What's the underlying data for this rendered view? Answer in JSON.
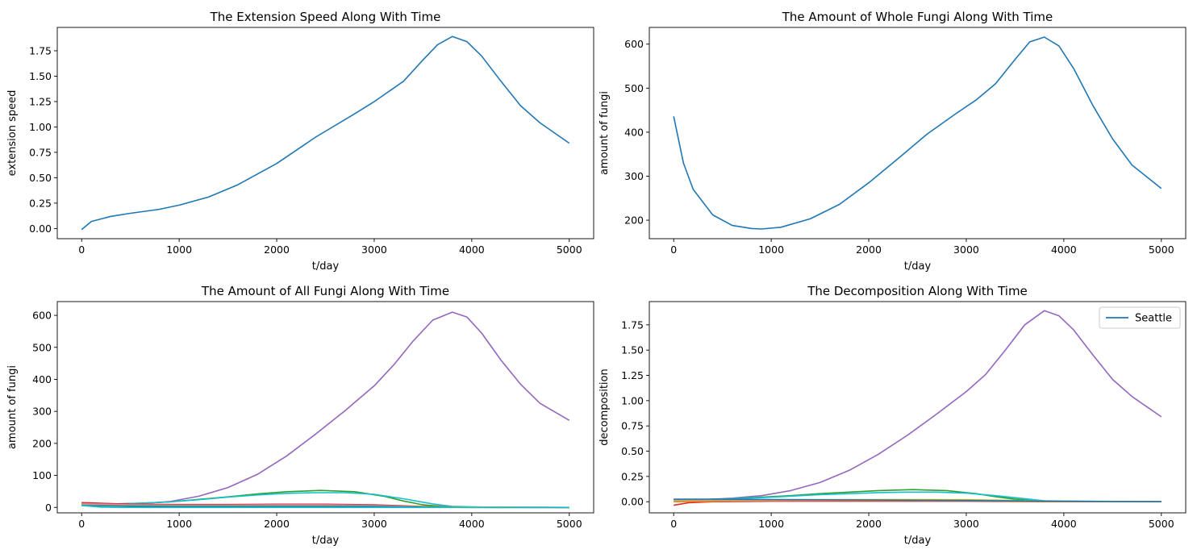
{
  "chart_data": [
    {
      "type": "line",
      "title": "The Extension Speed Along With Time",
      "xlabel": "t/day",
      "ylabel": "extension speed",
      "xlim": [
        -250,
        5250
      ],
      "ylim": [
        -0.1,
        1.98
      ],
      "xticks": [
        0,
        1000,
        2000,
        3000,
        4000,
        5000
      ],
      "yticks": [
        0.0,
        0.25,
        0.5,
        0.75,
        1.0,
        1.25,
        1.5,
        1.75
      ],
      "ytick_labels": [
        "0.00",
        "0.25",
        "0.50",
        "0.75",
        "1.00",
        "1.25",
        "1.50",
        "1.75"
      ],
      "series": [
        {
          "color": "#1f77b4",
          "x": [
            0,
            100,
            300,
            500,
            800,
            1000,
            1300,
            1600,
            2000,
            2400,
            2800,
            3000,
            3300,
            3500,
            3650,
            3800,
            3950,
            4100,
            4300,
            4500,
            4700,
            5000
          ],
          "y": [
            -0.01,
            0.07,
            0.12,
            0.15,
            0.19,
            0.23,
            0.31,
            0.43,
            0.64,
            0.9,
            1.13,
            1.25,
            1.45,
            1.66,
            1.81,
            1.89,
            1.84,
            1.7,
            1.45,
            1.21,
            1.04,
            0.84
          ]
        }
      ]
    },
    {
      "type": "line",
      "title": "The Amount of Whole Fungi Along With Time",
      "xlabel": "t/day",
      "ylabel": "amount of fungi",
      "xlim": [
        -250,
        5250
      ],
      "ylim": [
        158,
        638
      ],
      "xticks": [
        0,
        1000,
        2000,
        3000,
        4000,
        5000
      ],
      "yticks": [
        200,
        300,
        400,
        500,
        600
      ],
      "ytick_labels": [
        "200",
        "300",
        "400",
        "500",
        "600"
      ],
      "series": [
        {
          "color": "#1f77b4",
          "x": [
            0,
            100,
            200,
            400,
            600,
            800,
            900,
            1100,
            1400,
            1700,
            2000,
            2300,
            2600,
            2900,
            3100,
            3300,
            3500,
            3650,
            3800,
            3950,
            4100,
            4300,
            4500,
            4700,
            5000
          ],
          "y": [
            436,
            330,
            270,
            212,
            188,
            181,
            180,
            184,
            203,
            236,
            285,
            340,
            396,
            443,
            473,
            510,
            565,
            605,
            616,
            596,
            545,
            460,
            385,
            325,
            272
          ]
        }
      ]
    },
    {
      "type": "line",
      "title": "The Amount of All Fungi Along With Time",
      "xlabel": "t/day",
      "ylabel": "amount of fungi",
      "xlim": [
        -250,
        5250
      ],
      "ylim": [
        -17,
        643
      ],
      "xticks": [
        0,
        1000,
        2000,
        3000,
        4000,
        5000
      ],
      "yticks": [
        0,
        100,
        200,
        300,
        400,
        500,
        600
      ],
      "ytick_labels": [
        "0",
        "100",
        "200",
        "300",
        "400",
        "500",
        "600"
      ],
      "series": [
        {
          "color": "#9467bd",
          "x": [
            0,
            300,
            600,
            900,
            1200,
            1500,
            1800,
            2100,
            2400,
            2700,
            3000,
            3200,
            3400,
            3600,
            3800,
            3950,
            4100,
            4300,
            4500,
            4700,
            5000
          ],
          "y": [
            10,
            9,
            12,
            18,
            35,
            62,
            103,
            160,
            229,
            302,
            380,
            445,
            520,
            585,
            610,
            595,
            545,
            460,
            385,
            325,
            272
          ]
        },
        {
          "color": "#2ca02c",
          "x": [
            0,
            300,
            600,
            900,
            1200,
            1500,
            1800,
            2100,
            2450,
            2800,
            3100,
            3300,
            3500,
            3700,
            3900,
            4200,
            5000
          ],
          "y": [
            13,
            11,
            13,
            17,
            25,
            33,
            42,
            49,
            53,
            49,
            35,
            20,
            8,
            3,
            1,
            0,
            0
          ]
        },
        {
          "color": "#17becf",
          "x": [
            0,
            300,
            600,
            900,
            1200,
            1500,
            1800,
            2100,
            2400,
            2700,
            3000,
            3300,
            3600,
            3800,
            4200,
            5000
          ],
          "y": [
            11,
            10,
            13,
            17,
            24,
            32,
            39,
            44,
            46,
            46,
            41,
            27,
            11,
            3,
            1,
            0
          ]
        },
        {
          "color": "#d62728",
          "x": [
            0,
            500,
            1000,
            1500,
            2000,
            2500,
            3000,
            3500,
            4000,
            5000
          ],
          "y": [
            15,
            10,
            9,
            9,
            10,
            10,
            8,
            3,
            1,
            0
          ]
        },
        {
          "color": "#e377c2",
          "x": [
            0,
            500,
            1000,
            1500,
            2000,
            2500,
            3000,
            3500,
            4000,
            5000
          ],
          "y": [
            12,
            8,
            7,
            7,
            8,
            8,
            6,
            2,
            1,
            0
          ]
        },
        {
          "color": "#bcbd22",
          "x": [
            0,
            500,
            1000,
            1500,
            2000,
            2500,
            3000,
            3500,
            4000,
            5000
          ],
          "y": [
            8,
            6,
            5,
            5,
            5,
            5,
            4,
            2,
            1,
            0
          ]
        },
        {
          "color": "#1f77b4",
          "x": [
            0,
            500,
            1000,
            1500,
            2000,
            2500,
            3000,
            3500,
            4000,
            5000
          ],
          "y": [
            6,
            4,
            3,
            3,
            3,
            3,
            3,
            1,
            0,
            0
          ]
        },
        {
          "color": "#17becf",
          "x": [
            0,
            200,
            400,
            1000,
            2000,
            3000,
            4000,
            5000
          ],
          "y": [
            6,
            1,
            0,
            0,
            0,
            0,
            0,
            0
          ]
        }
      ]
    },
    {
      "type": "line",
      "title": "The Decomposition Along With Time",
      "xlabel": "t/day",
      "ylabel": "decomposition",
      "xlim": [
        -250,
        5250
      ],
      "ylim": [
        -0.11,
        1.98
      ],
      "xticks": [
        0,
        1000,
        2000,
        3000,
        4000,
        5000
      ],
      "yticks": [
        0.0,
        0.25,
        0.5,
        0.75,
        1.0,
        1.25,
        1.5,
        1.75
      ],
      "ytick_labels": [
        "0.00",
        "0.25",
        "0.50",
        "0.75",
        "1.00",
        "1.25",
        "1.50",
        "1.75"
      ],
      "legend": {
        "location": "upper right",
        "entries": [
          {
            "label": "Seattle",
            "color": "#1f77b4"
          }
        ]
      },
      "series": [
        {
          "color": "#9467bd",
          "x": [
            0,
            300,
            600,
            900,
            1200,
            1500,
            1800,
            2100,
            2400,
            2700,
            3000,
            3200,
            3400,
            3600,
            3800,
            3950,
            4100,
            4300,
            4500,
            4700,
            5000
          ],
          "y": [
            0.02,
            0.02,
            0.035,
            0.06,
            0.11,
            0.19,
            0.31,
            0.47,
            0.66,
            0.87,
            1.09,
            1.26,
            1.5,
            1.75,
            1.89,
            1.84,
            1.7,
            1.45,
            1.21,
            1.04,
            0.84
          ]
        },
        {
          "color": "#2ca02c",
          "x": [
            0,
            300,
            600,
            900,
            1200,
            1500,
            1800,
            2100,
            2450,
            2800,
            3100,
            3300,
            3500,
            3700,
            3900,
            4200,
            5000
          ],
          "y": [
            0.02,
            0.02,
            0.03,
            0.045,
            0.06,
            0.08,
            0.095,
            0.11,
            0.12,
            0.11,
            0.08,
            0.05,
            0.025,
            0.01,
            0.005,
            0.0,
            0.0
          ]
        },
        {
          "color": "#17becf",
          "x": [
            0,
            300,
            600,
            900,
            1200,
            1500,
            1800,
            2100,
            2400,
            2700,
            3000,
            3300,
            3600,
            3800,
            4200,
            5000
          ],
          "y": [
            0.02,
            0.02,
            0.03,
            0.04,
            0.055,
            0.07,
            0.08,
            0.09,
            0.095,
            0.095,
            0.085,
            0.06,
            0.03,
            0.01,
            0.005,
            0.0
          ]
        },
        {
          "color": "#d62728",
          "x": [
            0,
            150,
            400,
            1000,
            2000,
            3000,
            4000,
            5000
          ],
          "y": [
            -0.035,
            -0.01,
            0.0,
            0.005,
            0.005,
            0.005,
            0.0,
            0.0
          ]
        },
        {
          "color": "#ff7f0e",
          "x": [
            0,
            500,
            1000,
            2000,
            3000,
            4000,
            5000
          ],
          "y": [
            0.0,
            0.005,
            0.01,
            0.012,
            0.01,
            0.0,
            0.0
          ]
        },
        {
          "color": "#e377c2",
          "x": [
            0,
            500,
            1000,
            2000,
            3000,
            4000,
            5000
          ],
          "y": [
            0.01,
            0.012,
            0.015,
            0.018,
            0.015,
            0.005,
            0.0
          ]
        },
        {
          "color": "#bcbd22",
          "x": [
            0,
            500,
            1000,
            2000,
            3000,
            4000,
            5000
          ],
          "y": [
            0.015,
            0.018,
            0.02,
            0.022,
            0.02,
            0.005,
            0.0
          ]
        },
        {
          "color": "#1f77b4",
          "x": [
            0,
            500,
            1000,
            2000,
            3000,
            4000,
            5000
          ],
          "y": [
            0.025,
            0.025,
            0.022,
            0.018,
            0.012,
            0.004,
            0.0
          ]
        }
      ]
    }
  ]
}
